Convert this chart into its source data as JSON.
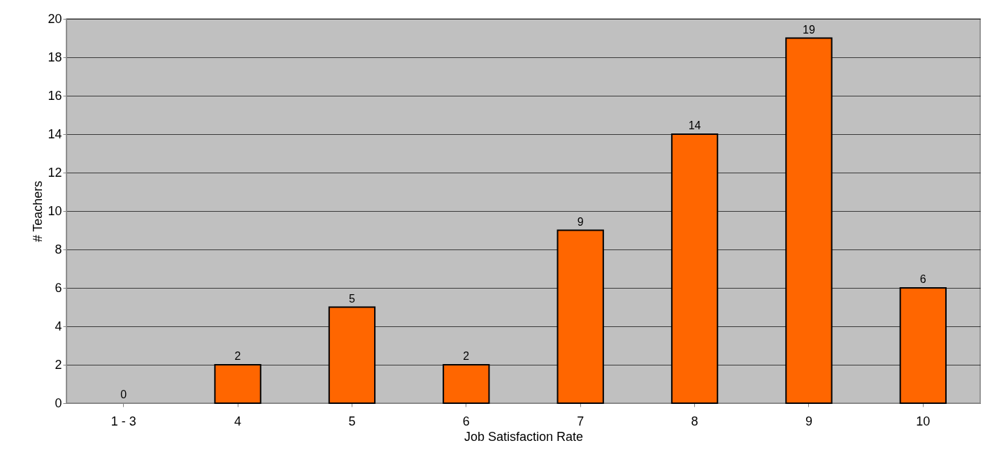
{
  "chart_data": {
    "type": "bar",
    "xlabel": "Job Satisfaction Rate",
    "ylabel": "# Teachers",
    "categories": [
      "1 - 3",
      "4",
      "5",
      "6",
      "7",
      "8",
      "9",
      "10"
    ],
    "values": [
      0,
      2,
      5,
      2,
      9,
      14,
      19,
      6
    ],
    "color": "#ff6600",
    "ylim": [
      0,
      20
    ],
    "yticks": [
      0,
      2,
      4,
      6,
      8,
      10,
      12,
      14,
      16,
      18,
      20
    ],
    "grid": "y",
    "data_labels": true
  }
}
